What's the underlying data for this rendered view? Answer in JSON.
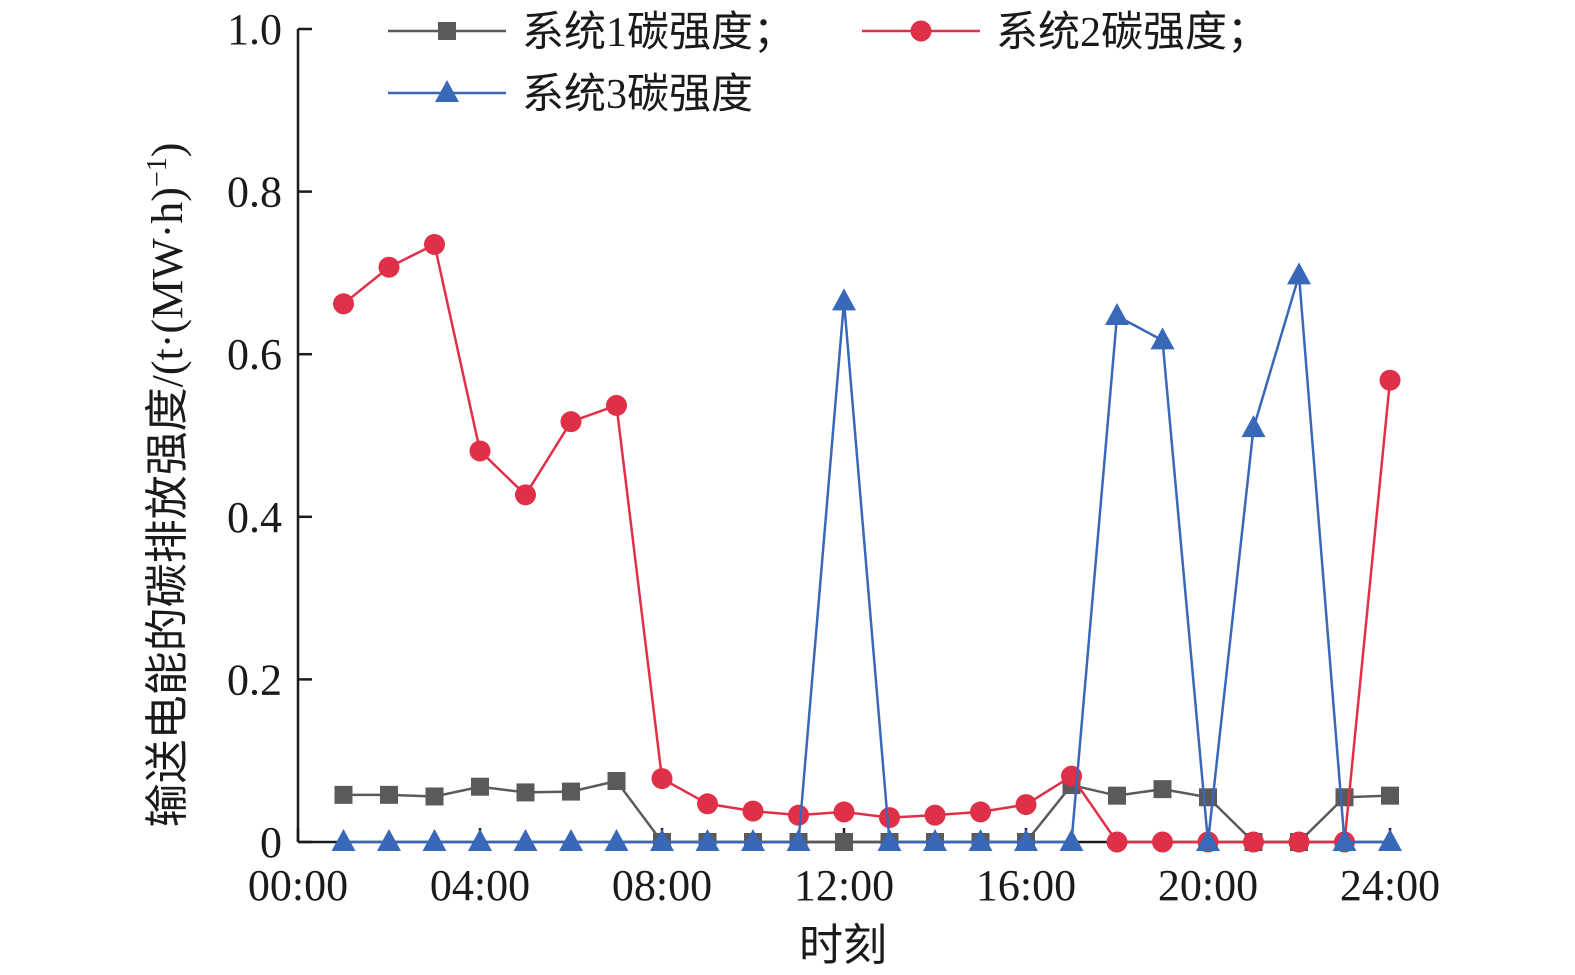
{
  "chart_data": {
    "type": "line",
    "title": "",
    "xlabel": "时刻",
    "ylabel": "输送电能的碳排放强度/(t·(MW·h)",
    "ylabel_superscript": "−1",
    "ylabel_close": ")",
    "xlim": [
      0,
      24
    ],
    "ylim": [
      0,
      1.0
    ],
    "x_ticks": [
      0,
      4,
      8,
      12,
      16,
      20,
      24
    ],
    "x_tick_labels": [
      "00:00",
      "04:00",
      "08:00",
      "12:00",
      "16:00",
      "20:00",
      "24:00"
    ],
    "y_ticks": [
      0,
      0.2,
      0.4,
      0.6,
      0.8,
      1.0
    ],
    "y_tick_labels": [
      "0",
      "0.2",
      "0.4",
      "0.6",
      "0.8",
      "1.0"
    ],
    "grid": false,
    "legend_position": "top",
    "x": [
      1,
      2,
      3,
      4,
      5,
      6,
      7,
      8,
      9,
      10,
      11,
      12,
      13,
      14,
      15,
      16,
      17,
      18,
      19,
      20,
      21,
      22,
      23,
      24
    ],
    "series": [
      {
        "name": "系统1碳强度；",
        "color": "#5a5a5a",
        "marker": "square",
        "values": [
          0.058,
          0.058,
          0.056,
          0.068,
          0.061,
          0.062,
          0.075,
          0,
          0,
          0,
          0,
          0,
          0,
          0,
          0,
          0,
          0.07,
          0.057,
          0.065,
          0.055,
          0,
          0,
          0.055,
          0.057
        ]
      },
      {
        "name": "系统2碳强度；",
        "color": "#e03048",
        "marker": "circle",
        "values": [
          0.662,
          0.707,
          0.735,
          0.481,
          0.427,
          0.517,
          0.537,
          0.078,
          0.047,
          0.038,
          0.033,
          0.037,
          0.03,
          0.033,
          0.037,
          0.046,
          0.081,
          0,
          0,
          0,
          0,
          0,
          0,
          0.568
        ]
      },
      {
        "name": "系统3碳强度",
        "color": "#3a68b8",
        "marker": "triangle",
        "values": [
          0,
          0,
          0,
          0,
          0,
          0,
          0,
          0,
          0,
          0,
          0,
          0.665,
          0,
          0,
          0,
          0,
          0,
          0.647,
          0.617,
          0,
          0.509,
          0.697,
          0,
          0
        ]
      }
    ]
  }
}
